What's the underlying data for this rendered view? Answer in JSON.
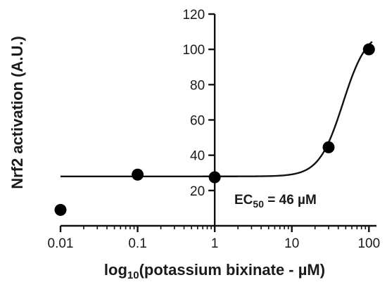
{
  "chart_data": {
    "type": "scatter",
    "title": "",
    "xlabel": {
      "prefix": "log",
      "sub": "10",
      "rest": "(potassium bixinate - µM)"
    },
    "ylabel": "Nrf2 activation (A.U.)",
    "x_scale": "log",
    "xlim": [
      0.01,
      120
    ],
    "ylim": [
      0,
      120
    ],
    "x_ticks": [
      {
        "value": 0.01,
        "label": "0.01"
      },
      {
        "value": 0.1,
        "label": "0.1"
      },
      {
        "value": 1,
        "label": "1"
      },
      {
        "value": 10,
        "label": "10"
      },
      {
        "value": 100,
        "label": "100"
      }
    ],
    "y_ticks": [
      {
        "value": 20,
        "label": "20"
      },
      {
        "value": 40,
        "label": "40"
      },
      {
        "value": 60,
        "label": "60"
      },
      {
        "value": 80,
        "label": "80"
      },
      {
        "value": 100,
        "label": "100"
      },
      {
        "value": 120,
        "label": "120"
      }
    ],
    "points": [
      {
        "x": 0.01,
        "y": 9
      },
      {
        "x": 0.1,
        "y": 29
      },
      {
        "x": 1,
        "y": 27.5
      },
      {
        "x": 30,
        "y": 44.5
      },
      {
        "x": 100,
        "y": 100
      }
    ],
    "fit_curve": {
      "model": "sigmoidal dose-response",
      "bottom": 28,
      "top": 111,
      "ec50": 46,
      "hill_slope": 2.8
    },
    "annotation": {
      "prefix": "EC",
      "sub": "50",
      "rest": " = 46 µM"
    },
    "grid": false,
    "legend": "none"
  }
}
